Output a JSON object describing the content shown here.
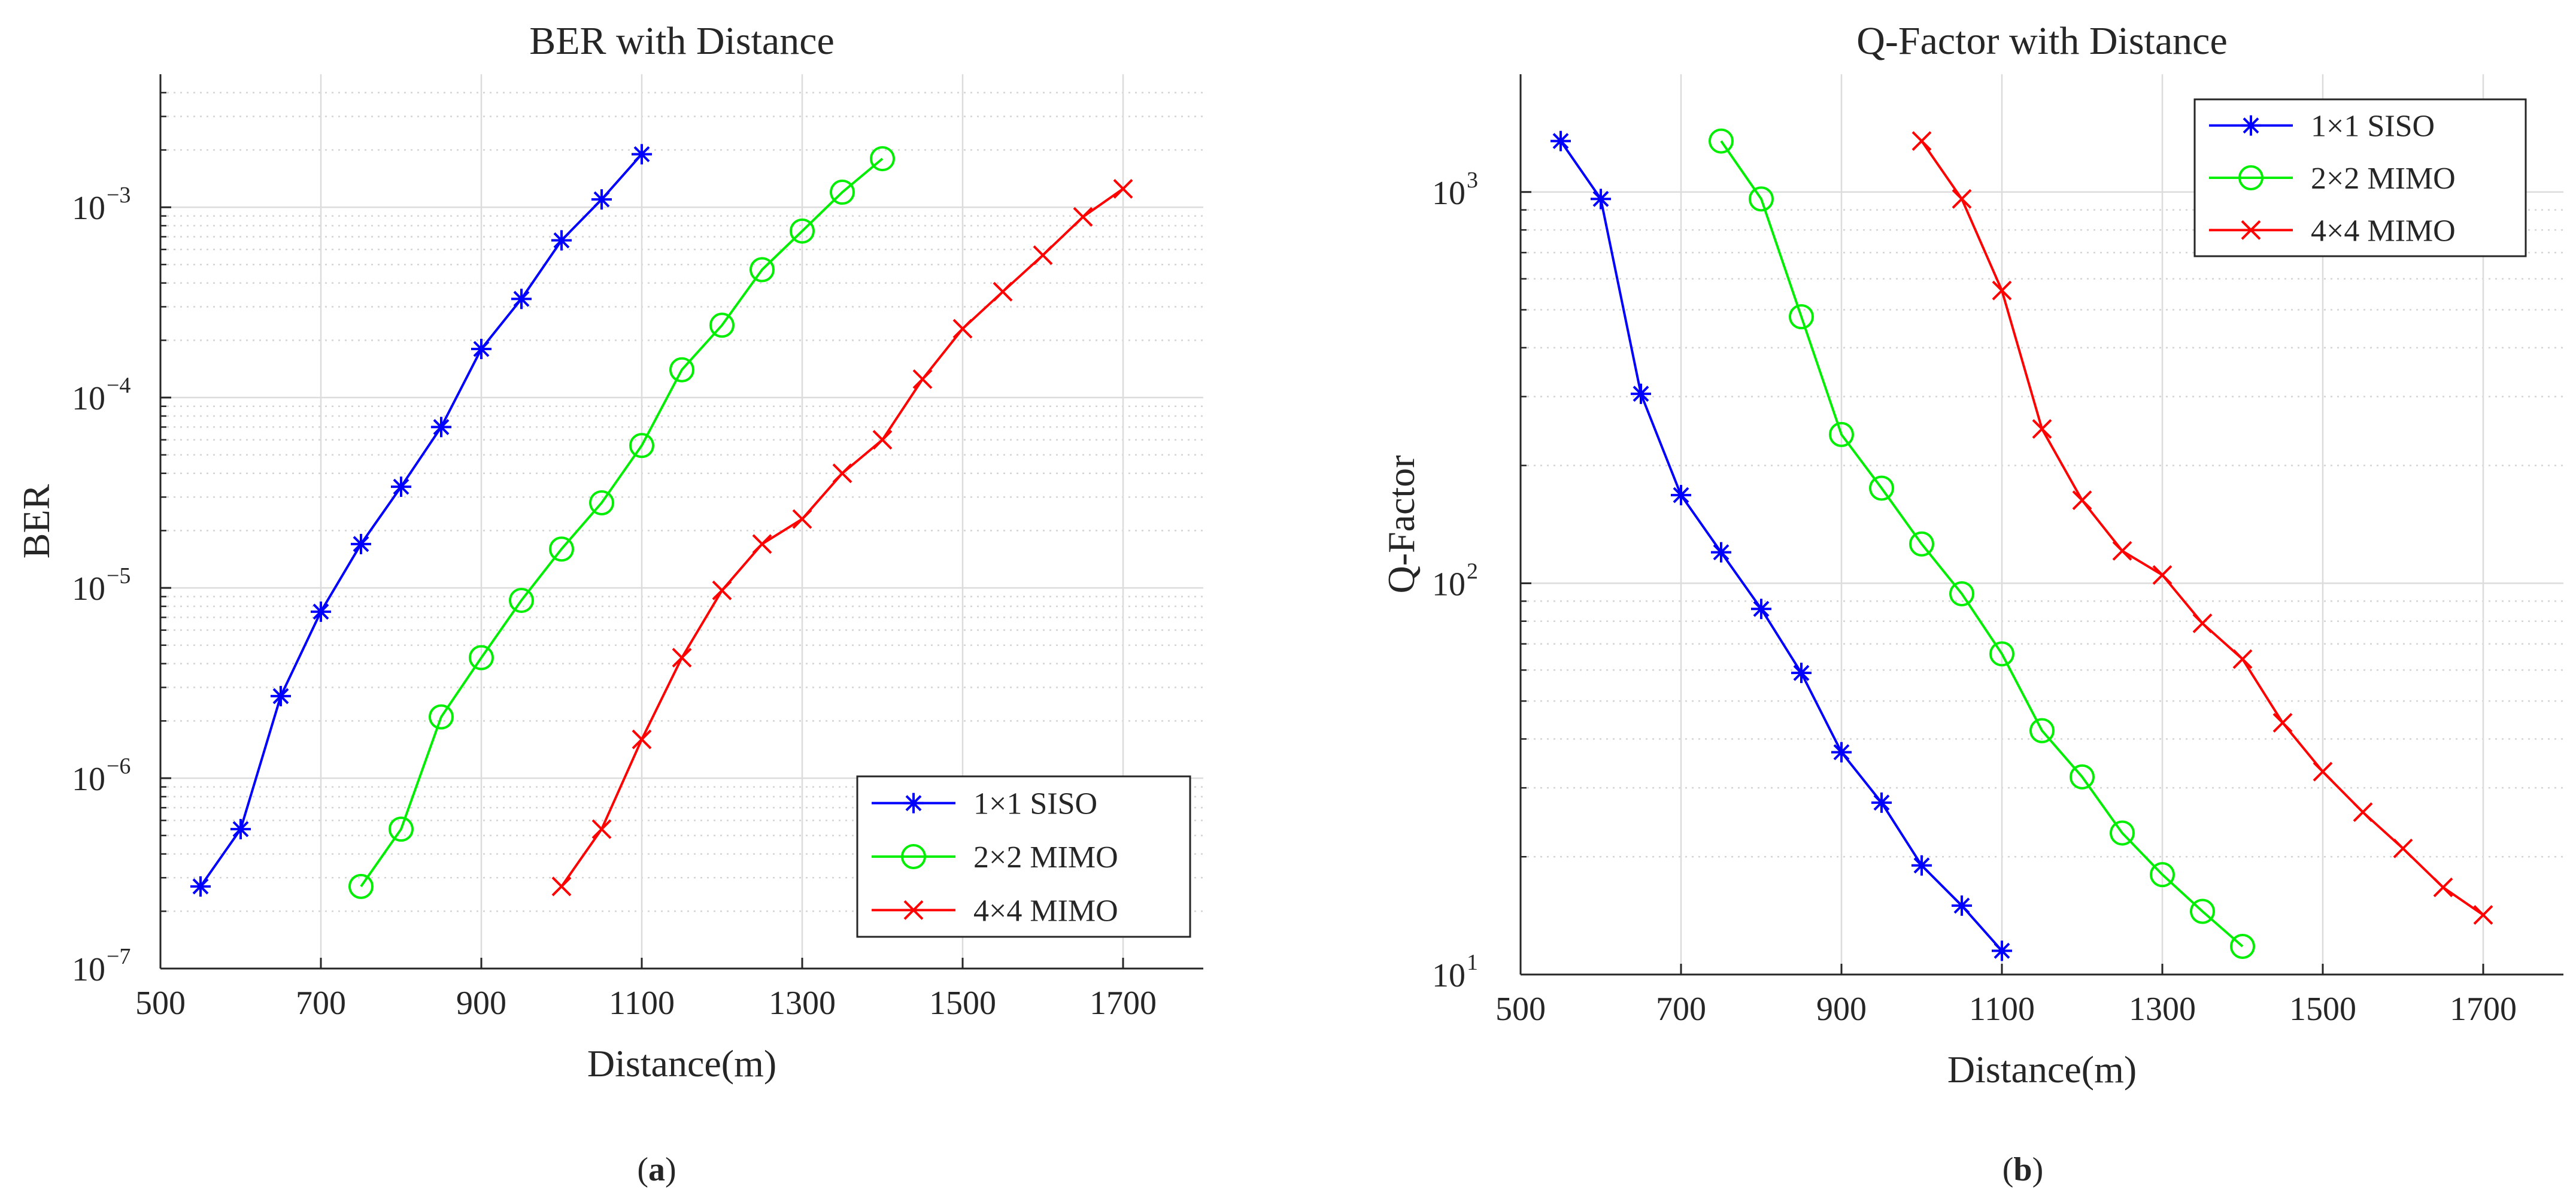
{
  "chart_data": [
    {
      "type": "line",
      "title": "BER with Distance",
      "xlabel": "Distance(m)",
      "ylabel": "BER",
      "caption_letter": "a",
      "yscale": "log",
      "xlim": [
        500,
        1800
      ],
      "ylim": [
        1e-07,
        0.005
      ],
      "xticks": [
        500,
        700,
        900,
        1100,
        1300,
        1500,
        1700
      ],
      "yticks": [
        {
          "value": 1e-07,
          "base": "10",
          "exp": "−7"
        },
        {
          "value": 1e-06,
          "base": "10",
          "exp": "−6"
        },
        {
          "value": 1e-05,
          "base": "10",
          "exp": "−5"
        },
        {
          "value": 0.0001,
          "base": "10",
          "exp": "−4"
        },
        {
          "value": 0.001,
          "base": "10",
          "exp": "−3"
        }
      ],
      "grid": true,
      "legend_position": "bottom-right",
      "series": [
        {
          "name": "1×1 SISO",
          "color": "#0000ff",
          "marker": "asterisk",
          "x": [
            550,
            600,
            650,
            700,
            750,
            800,
            850,
            900,
            950,
            1000,
            1050,
            1100
          ],
          "y": [
            2.7e-07,
            5.4e-07,
            2.7e-06,
            7.5e-06,
            1.7e-05,
            3.4e-05,
            7e-05,
            0.00018,
            0.00033,
            0.00067,
            0.0011,
            0.0019
          ]
        },
        {
          "name": "2×2 MIMO",
          "color": "#00ee00",
          "marker": "circle",
          "x": [
            750,
            800,
            850,
            900,
            950,
            1000,
            1050,
            1100,
            1150,
            1200,
            1250,
            1300,
            1350,
            1400
          ],
          "y": [
            2.7e-07,
            5.4e-07,
            2.1e-06,
            4.3e-06,
            8.6e-06,
            1.6e-05,
            2.8e-05,
            5.6e-05,
            0.00014,
            0.00024,
            0.00047,
            0.00075,
            0.0012,
            0.0018
          ]
        },
        {
          "name": "4×4 MIMO",
          "color": "#ff0000",
          "marker": "x",
          "x": [
            1000,
            1050,
            1100,
            1150,
            1200,
            1250,
            1300,
            1350,
            1400,
            1450,
            1500,
            1550,
            1600,
            1650,
            1700
          ],
          "y": [
            2.7e-07,
            5.4e-07,
            1.6e-06,
            4.3e-06,
            9.7e-06,
            1.7e-05,
            2.3e-05,
            4e-05,
            6e-05,
            0.000125,
            0.00023,
            0.00036,
            0.00056,
            0.00089,
            0.00125
          ]
        }
      ]
    },
    {
      "type": "line",
      "title": "Q-Factor with Distance",
      "xlabel": "Distance(m)",
      "ylabel": "Q-Factor",
      "caption_letter": "b",
      "yscale": "log",
      "xlim": [
        500,
        1800
      ],
      "ylim": [
        10,
        2000
      ],
      "xticks": [
        500,
        700,
        900,
        1100,
        1300,
        1500,
        1700
      ],
      "yticks": [
        {
          "value": 10,
          "base": "10",
          "exp": "1"
        },
        {
          "value": 100,
          "base": "10",
          "exp": "2"
        },
        {
          "value": 1000,
          "base": "10",
          "exp": "3"
        }
      ],
      "grid": true,
      "legend_position": "top-right",
      "series": [
        {
          "name": "1×1 SISO",
          "color": "#0000ff",
          "marker": "asterisk",
          "x": [
            550,
            600,
            650,
            700,
            750,
            800,
            850,
            900,
            950,
            1000,
            1050,
            1100
          ],
          "y": [
            1350,
            960,
            305,
            168,
            120,
            86,
            59,
            37,
            27.5,
            19,
            15,
            11.5
          ]
        },
        {
          "name": "2×2 MIMO",
          "color": "#00ee00",
          "marker": "circle",
          "x": [
            750,
            800,
            850,
            900,
            950,
            1000,
            1050,
            1100,
            1150,
            1200,
            1250,
            1300,
            1350,
            1400
          ],
          "y": [
            1350,
            960,
            480,
            240,
            175,
            126,
            94,
            66,
            42,
            32,
            23,
            18,
            14.5,
            11.8
          ]
        },
        {
          "name": "4×4 MIMO",
          "color": "#ff0000",
          "marker": "x",
          "x": [
            1000,
            1050,
            1100,
            1150,
            1200,
            1250,
            1300,
            1350,
            1400,
            1450,
            1500,
            1550,
            1600,
            1650,
            1700
          ],
          "y": [
            1350,
            960,
            560,
            248,
            163,
            121,
            105,
            79,
            64,
            44,
            33,
            26,
            21,
            16.7,
            14.2
          ]
        }
      ]
    }
  ]
}
